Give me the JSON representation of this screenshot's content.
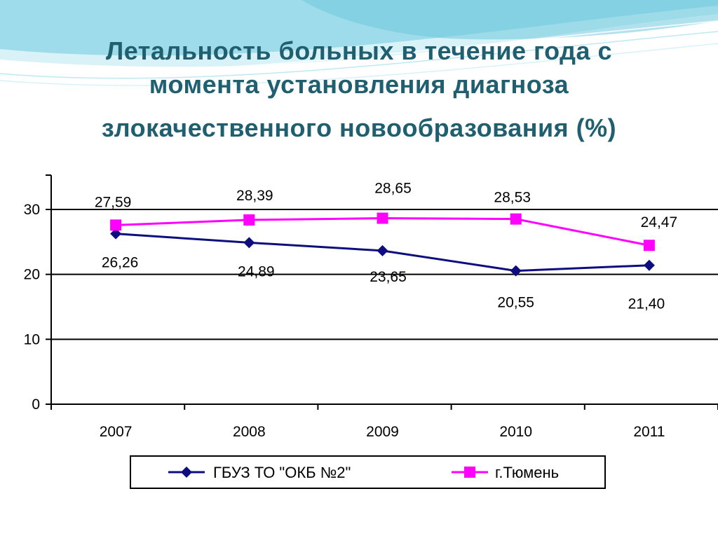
{
  "title": {
    "line1": "Летальность больных в течение года с",
    "line2": "момента установления диагноза",
    "line3": "злокачественного новообразования (%)"
  },
  "colors": {
    "title": "#1f5f6f",
    "series_okb": "#0d0d80",
    "series_tyumen": "#ff00ff",
    "wave_light": "#bfe9f2",
    "wave_mid": "#7fd3e6"
  },
  "chart_data": {
    "type": "line",
    "categories": [
      "2007",
      "2008",
      "2009",
      "2010",
      "2011"
    ],
    "ylim": [
      0,
      35
    ],
    "yticks": [
      "0",
      "10",
      "20",
      "30"
    ],
    "ytick_values": [
      0,
      10,
      20,
      30
    ],
    "grid": true,
    "legend_position": "bottom",
    "series": [
      {
        "name": "ГБУЗ ТО \"ОКБ №2\"",
        "marker": "diamond",
        "values": [
          26.26,
          24.89,
          23.65,
          20.55,
          21.4
        ],
        "labels": [
          "26,26",
          "24,89",
          "23,65",
          "20,55",
          "21,40"
        ]
      },
      {
        "name": "г.Тюмень",
        "marker": "square",
        "values": [
          27.59,
          28.39,
          28.65,
          28.53,
          24.47
        ],
        "labels": [
          "27,59",
          "28,39",
          "28,65",
          "28,53",
          "24,47"
        ]
      }
    ]
  }
}
